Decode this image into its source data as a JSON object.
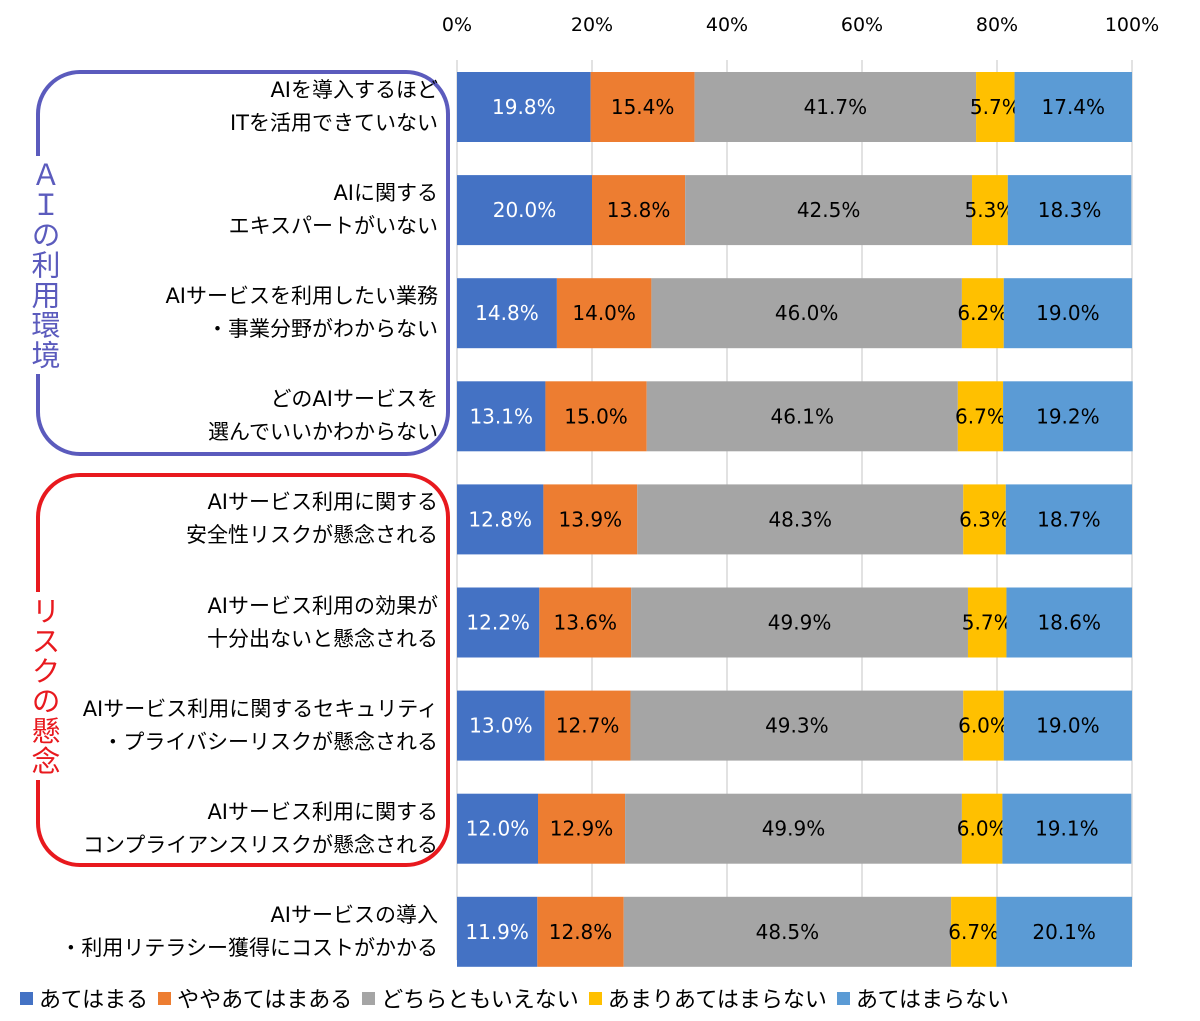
{
  "colors": {
    "strongly_agree": "#4472c4",
    "somewhat_agree": "#ed7d31",
    "neutral": "#a5a5a5",
    "somewhat_disagree": "#ffc000",
    "strongly_disagree": "#5b9bd5",
    "group_environment": "#5b5bbd",
    "group_risk": "#e8191e"
  },
  "groups": [
    {
      "label": "ＡＩの利用環境"
    },
    {
      "label": "リスクの懸念"
    }
  ],
  "chart_data": {
    "type": "bar",
    "orientation": "horizontal",
    "stacked": "percent",
    "xlim": [
      0,
      100
    ],
    "x_tick_labels": [
      "0%",
      "20%",
      "40%",
      "60%",
      "80%",
      "100%"
    ],
    "grid": true,
    "legend_position": "bottom",
    "categories": [
      "AIを導入するほど\nITを活用できていない",
      "AIに関する\nエキスパートがいない",
      "AIサービスを利用したい業務\n・事業分野がわからない",
      "どのAIサービスを\n選んでいいかわからない",
      "AIサービス利用に関する\n安全性リスクが懸念される",
      "AIサービス利用の効果が\n十分出ないと懸念される",
      "AIサービス利用に関するセキュリティ\n・プライバシーリスクが懸念される",
      "AIサービス利用に関する\nコンプライアンスリスクが懸念される",
      "AIサービスの導入\n・利用リテラシー獲得にコストがかかる"
    ],
    "series": [
      {
        "name": "あてはまる",
        "values": [
          19.8,
          20.0,
          14.8,
          13.1,
          12.8,
          12.2,
          13.0,
          12.0,
          11.9
        ],
        "labels": [
          "19.8%",
          "20.0%",
          "14.8%",
          "13.1%",
          "12.8%",
          "12.2%",
          "13.0%",
          "12.0%",
          "11.9%"
        ]
      },
      {
        "name": "ややあてはまある",
        "values": [
          15.4,
          13.8,
          14.0,
          15.0,
          13.9,
          13.6,
          12.7,
          12.9,
          12.8
        ],
        "labels": [
          "15.4%",
          "13.8%",
          "14.0%",
          "15.0%",
          "13.9%",
          "13.6%",
          "12.7%",
          "12.9%",
          "12.8%"
        ]
      },
      {
        "name": "どちらともいえない",
        "values": [
          41.7,
          42.5,
          46.0,
          46.1,
          48.3,
          49.9,
          49.3,
          49.9,
          48.5
        ],
        "labels": [
          "41.7%",
          "42.5%",
          "46.0%",
          "46.1%",
          "48.3%",
          "49.9%",
          "49.3%",
          "49.9%",
          "48.5%"
        ]
      },
      {
        "name": "あまりあてはまらない",
        "values": [
          5.7,
          5.3,
          6.2,
          6.7,
          6.3,
          5.7,
          6.0,
          6.0,
          6.7
        ],
        "labels": [
          "5.7%",
          "5.3%",
          "6.2%",
          "6.7%",
          "6.3%",
          "5.7%",
          "6.0%",
          "6.0%",
          "6.7%"
        ]
      },
      {
        "name": "あてはまらない",
        "values": [
          17.4,
          18.3,
          19.0,
          19.2,
          18.7,
          18.6,
          19.0,
          19.1,
          20.1
        ],
        "labels": [
          "17.4%",
          "18.3%",
          "19.0%",
          "19.2%",
          "18.7%",
          "18.6%",
          "19.0%",
          "19.1%",
          "20.1%"
        ]
      }
    ]
  }
}
